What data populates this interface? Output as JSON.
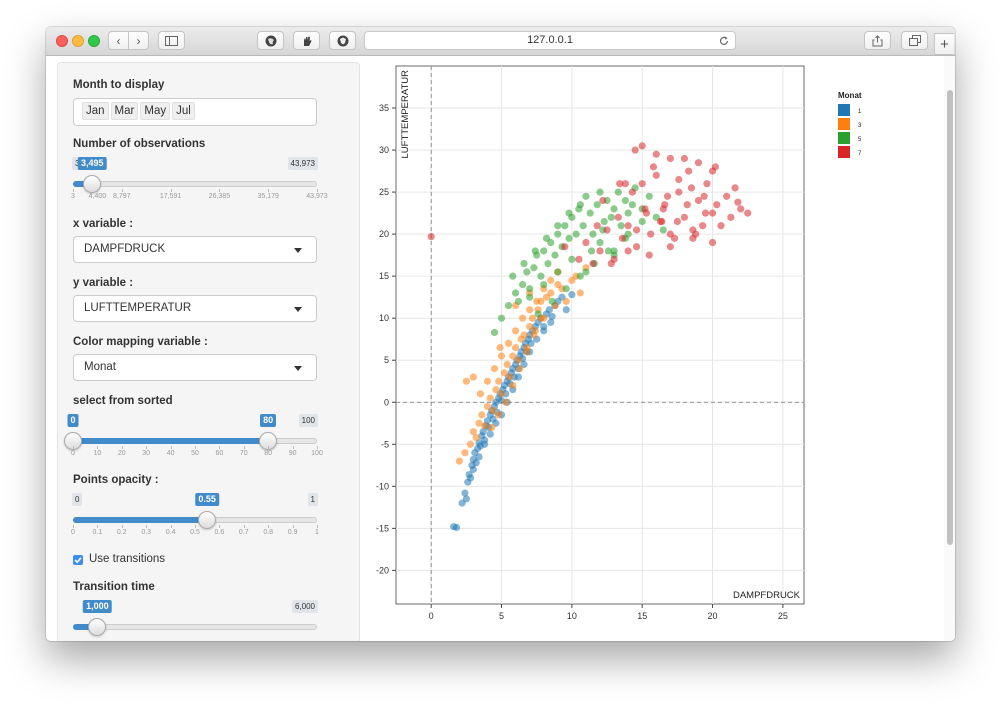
{
  "browser": {
    "url": "127.0.0.1"
  },
  "sidebar": {
    "month": {
      "label": "Month to display",
      "selected": [
        "Jan",
        "Mar",
        "May",
        "Jul"
      ]
    },
    "observations": {
      "label": "Number of observations",
      "min_label": "3",
      "max_label": "43,973",
      "value_label": "3,495",
      "value_fraction": 0.079,
      "ticks": [
        "3",
        "4,400",
        "8,797",
        "17,591",
        "26,385",
        "35,179",
        "43,973"
      ]
    },
    "x_variable": {
      "label": "x variable :",
      "selected": "DAMPFDRUCK"
    },
    "y_variable": {
      "label": "y variable :",
      "selected": "LUFTTEMPERATUR"
    },
    "color_variable": {
      "label": "Color mapping variable :",
      "selected": "Monat"
    },
    "sorted": {
      "label": "select from sorted",
      "from_label": "0",
      "to_label": "80",
      "max_label": "100",
      "from": 0,
      "to": 80,
      "ticks": [
        "0",
        "10",
        "20",
        "30",
        "40",
        "50",
        "60",
        "70",
        "80",
        "90",
        "100"
      ]
    },
    "opacity": {
      "label": "Points opacity :",
      "min_label": "0",
      "max_label": "1",
      "value_label": "0.55",
      "value": 0.55,
      "ticks": [
        "0",
        "0.1",
        "0.2",
        "0.3",
        "0.4",
        "0.5",
        "0.6",
        "0.7",
        "0.8",
        "0.9",
        "1"
      ]
    },
    "transitions": {
      "label": "Use transitions",
      "checked": true
    },
    "transition_time": {
      "label": "Transition time",
      "value_label": "1,000",
      "max_label": "6,000",
      "value_fraction": 0.1
    }
  },
  "chart_data": {
    "type": "scatter",
    "xlabel": "DAMPFDRUCK",
    "ylabel": "LUFTTEMPERATUR",
    "xlim": [
      -2.5,
      26.5
    ],
    "ylim": [
      -24,
      40
    ],
    "x_ticks": [
      0,
      5,
      10,
      15,
      20,
      25
    ],
    "y_ticks": [
      -20,
      -15,
      -10,
      -5,
      0,
      5,
      10,
      15,
      20,
      25,
      30,
      35
    ],
    "grid": true,
    "zero_lines": true,
    "legend": {
      "title": "Monat",
      "placement": "right"
    },
    "opacity": 0.55,
    "series": [
      {
        "name": "1",
        "color": "#1f77b4",
        "x": [
          1.6,
          1.8,
          2.2,
          2.4,
          2.5,
          2.6,
          2.7,
          2.8,
          2.9,
          3.0,
          3.1,
          3.2,
          3.3,
          3.4,
          3.5,
          3.6,
          3.7,
          3.8,
          3.9,
          4.0,
          4.1,
          4.2,
          4.3,
          4.4,
          4.5,
          4.6,
          4.7,
          4.8,
          4.9,
          5.0,
          5.1,
          5.2,
          5.3,
          5.4,
          5.5,
          5.6,
          5.7,
          5.8,
          5.9,
          6.0,
          6.1,
          6.2,
          6.3,
          6.4,
          6.5,
          6.6,
          6.7,
          6.8,
          6.9,
          7.0,
          7.1,
          7.2,
          7.4,
          7.6,
          7.8,
          8.0,
          8.2,
          8.4,
          8.6,
          8.8,
          9.0,
          9.3,
          9.6,
          10.0,
          3.0,
          3.4,
          3.8,
          4.2,
          4.6,
          5.0,
          5.4,
          5.8,
          6.2,
          6.6,
          7.0,
          7.5,
          8.0,
          8.5
        ],
        "y": [
          -14.8,
          -14.9,
          -12.0,
          -10.8,
          -11.5,
          -9.5,
          -8.6,
          -9.0,
          -7.5,
          -6.8,
          -6.0,
          -7.2,
          -5.5,
          -4.8,
          -5.2,
          -4.0,
          -3.5,
          -4.5,
          -2.8,
          -2.2,
          -3.0,
          -1.5,
          -1.0,
          -2.0,
          -0.5,
          0.0,
          -1.2,
          0.5,
          1.0,
          0.2,
          1.5,
          2.0,
          1.0,
          2.5,
          3.0,
          2.2,
          3.5,
          4.0,
          3.0,
          4.5,
          5.0,
          4.0,
          5.5,
          6.0,
          5.2,
          6.5,
          7.0,
          6.0,
          7.5,
          8.0,
          7.0,
          8.5,
          9.0,
          9.5,
          10.0,
          9.0,
          10.5,
          11.0,
          10.2,
          11.5,
          12.0,
          12.5,
          11.0,
          12.8,
          -8.0,
          -6.5,
          -5.0,
          -3.8,
          -2.5,
          -1.5,
          0.0,
          1.5,
          3.0,
          4.5,
          6.0,
          7.5,
          8.5,
          9.5
        ]
      },
      {
        "name": "3",
        "color": "#ff7f0e",
        "x": [
          2.0,
          2.4,
          2.8,
          3.0,
          3.2,
          3.4,
          3.6,
          3.8,
          4.0,
          4.2,
          4.4,
          4.6,
          4.8,
          5.0,
          5.2,
          5.4,
          5.6,
          5.8,
          6.0,
          6.2,
          6.4,
          6.6,
          6.8,
          7.0,
          7.2,
          7.4,
          7.6,
          7.8,
          8.0,
          8.2,
          8.5,
          8.8,
          9.0,
          9.3,
          9.6,
          10.0,
          10.3,
          10.6,
          3.5,
          4.0,
          4.5,
          5.0,
          5.5,
          6.0,
          6.5,
          7.0,
          7.5,
          8.0,
          8.5,
          9.0,
          4.3,
          4.8,
          5.3,
          5.8,
          6.3,
          6.8,
          7.3,
          7.8,
          2.5,
          3.0,
          11.0,
          6.0,
          7.0,
          4.9
        ],
        "y": [
          -7.0,
          -6.0,
          -5.0,
          -3.5,
          -4.2,
          -2.5,
          -1.5,
          -2.8,
          -0.5,
          0.5,
          -1.0,
          1.5,
          2.5,
          1.0,
          3.5,
          4.5,
          3.0,
          5.5,
          6.5,
          5.0,
          7.5,
          8.0,
          6.5,
          9.0,
          10.0,
          8.5,
          11.0,
          12.0,
          10.0,
          12.5,
          13.0,
          11.5,
          14.0,
          13.5,
          12.0,
          14.5,
          15.0,
          13.0,
          1.0,
          2.5,
          4.0,
          5.5,
          7.0,
          8.5,
          10.0,
          11.0,
          12.0,
          13.5,
          14.5,
          15.5,
          -3.0,
          -1.5,
          0.0,
          2.0,
          4.0,
          6.0,
          8.0,
          10.0,
          2.5,
          3.0,
          16.0,
          11.5,
          13.0,
          6.5
        ]
      },
      {
        "name": "5",
        "color": "#2ca02c",
        "x": [
          4.5,
          5.0,
          5.5,
          6.0,
          6.2,
          6.5,
          6.8,
          7.0,
          7.3,
          7.5,
          7.8,
          8.0,
          8.3,
          8.5,
          8.8,
          9.0,
          9.3,
          9.5,
          9.8,
          10.0,
          10.3,
          10.5,
          10.8,
          11.0,
          11.3,
          11.5,
          11.8,
          12.0,
          12.3,
          12.5,
          12.8,
          13.0,
          13.3,
          13.5,
          13.8,
          14.0,
          14.3,
          14.5,
          15.0,
          15.5,
          16.0,
          5.8,
          6.6,
          7.4,
          8.2,
          9.0,
          9.8,
          10.6,
          11.4,
          12.2,
          13.0,
          13.8,
          7.0,
          8.0,
          9.0,
          10.0,
          11.0,
          12.0,
          13.0,
          14.0,
          15.0,
          16.5,
          7.6,
          8.6,
          9.6,
          10.6,
          11.6,
          12.6
        ],
        "y": [
          8.3,
          10.0,
          11.5,
          13.0,
          12.0,
          14.0,
          15.5,
          13.5,
          16.0,
          17.5,
          15.0,
          18.0,
          16.5,
          19.0,
          17.5,
          20.0,
          18.5,
          21.0,
          19.5,
          22.0,
          20.0,
          23.0,
          21.0,
          24.5,
          22.5,
          20.0,
          23.5,
          25.0,
          21.5,
          24.0,
          22.0,
          23.0,
          25.0,
          21.0,
          24.0,
          22.5,
          23.5,
          25.5,
          23.0,
          24.5,
          22.0,
          15.0,
          16.5,
          18.0,
          19.5,
          21.0,
          22.5,
          23.5,
          18.0,
          20.5,
          17.5,
          19.5,
          12.5,
          14.0,
          15.5,
          17.0,
          15.5,
          19.0,
          18.0,
          20.0,
          21.5,
          20.5,
          10.5,
          12.0,
          13.5,
          15.0,
          16.5,
          18.0
        ]
      },
      {
        "name": "7",
        "color": "#d62728",
        "x": [
          0.0,
          9.5,
          10.5,
          11.0,
          11.5,
          12.0,
          12.5,
          13.0,
          13.3,
          13.6,
          14.0,
          14.3,
          14.6,
          15.0,
          15.3,
          15.6,
          16.0,
          16.3,
          16.6,
          17.0,
          17.3,
          17.6,
          18.0,
          18.3,
          18.6,
          19.0,
          19.3,
          19.6,
          20.0,
          20.3,
          20.6,
          21.0,
          21.3,
          21.6,
          22.0,
          22.5,
          12.2,
          12.8,
          13.4,
          14.0,
          14.6,
          15.2,
          15.8,
          16.4,
          17.0,
          17.6,
          18.2,
          18.8,
          19.4,
          20.0,
          14.5,
          15.0,
          16.0,
          17.0,
          18.0,
          19.0,
          20.0,
          15.5,
          16.5,
          17.5,
          18.5,
          19.5,
          11.8,
          13.8,
          16.8,
          18.6,
          20.2,
          21.8
        ],
        "y": [
          19.7,
          18.5,
          17.0,
          19.0,
          16.5,
          18.0,
          20.5,
          17.0,
          22.0,
          19.5,
          21.0,
          25.0,
          18.5,
          30.5,
          22.5,
          20.0,
          27.0,
          21.5,
          23.5,
          29.0,
          19.5,
          25.0,
          22.0,
          27.5,
          20.5,
          24.0,
          21.0,
          26.0,
          22.5,
          23.5,
          21.0,
          24.5,
          22.0,
          25.5,
          23.0,
          22.5,
          24.0,
          16.5,
          26.0,
          18.0,
          20.5,
          23.0,
          28.0,
          21.5,
          18.5,
          26.5,
          23.5,
          20.0,
          24.5,
          19.0,
          30.0,
          26.0,
          29.5,
          20.0,
          29.0,
          28.5,
          27.5,
          17.5,
          23.0,
          21.5,
          25.5,
          22.5,
          21.0,
          26.0,
          24.5,
          19.5,
          28.0,
          23.8
        ]
      }
    ]
  }
}
